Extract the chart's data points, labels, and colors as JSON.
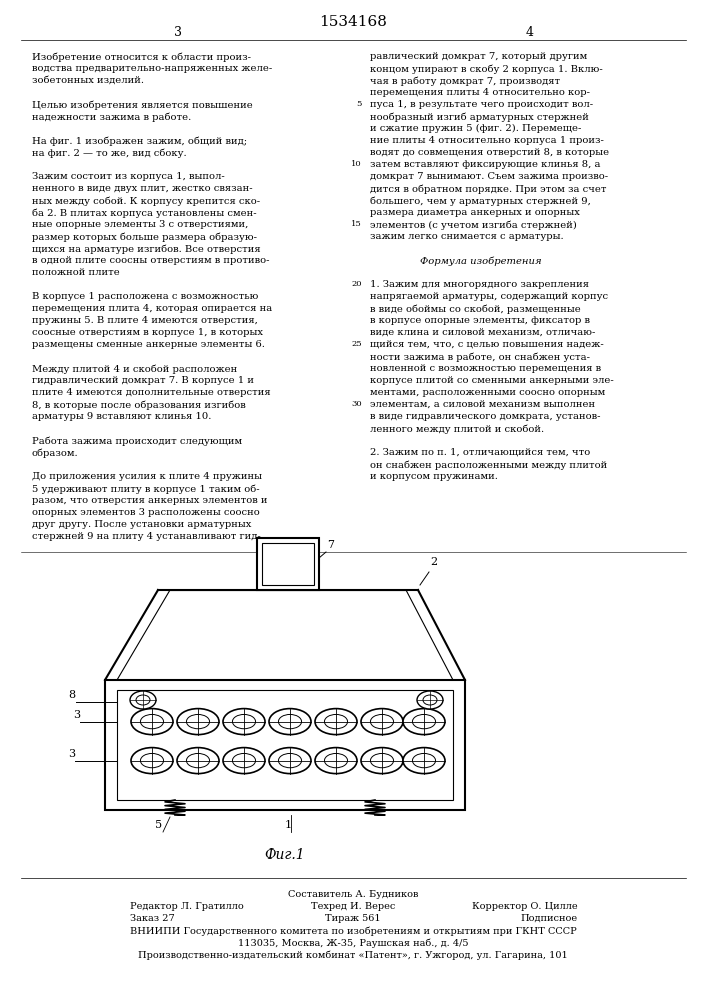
{
  "title": "1534168",
  "page_numbers": [
    "3",
    "4"
  ],
  "background_color": "#ffffff",
  "line_color": "#000000",
  "text_color": "#000000",
  "left_column_text": [
    "Изобретение относится к области произ-",
    "водства предварительно-напряженных желе-",
    "зобетонных изделий.",
    "",
    "Целью изобретения является повышение",
    "надежности зажима в работе.",
    "",
    "На фиг. 1 изображен зажим, общий вид;",
    "на фиг. 2 — то же, вид сбоку.",
    "",
    "Зажим состоит из корпуса 1, выпол-",
    "ненного в виде двух плит, жестко связан-",
    "ных между собой. К корпусу крепится ско-",
    "ба 2. В плитах корпуса установлены смен-",
    "ные опорные элементы 3 с отверстиями,",
    "размер которых больше размера образую-",
    "щихся на арматуре изгибов. Все отверстия",
    "в одной плите соосны отверстиям в противо-",
    "положной плите",
    "",
    "В корпусе 1 расположена с возможностью",
    "перемещения плита 4, которая опирается на",
    "пружины 5. В плите 4 имеются отверстия,",
    "соосные отверстиям в корпусе 1, в которых",
    "размещены сменные анкерные элементы 6.",
    "",
    "Между плитой 4 и скобой расположен",
    "гидравлический домкрат 7. В корпусе 1 и",
    "плите 4 имеются дополнительные отверстия",
    "8, в которые после образования изгибов",
    "арматуры 9 вставляют клинья 10.",
    "",
    "Работа зажима происходит следующим",
    "образом.",
    "",
    "До приложения усилия к плите 4 пружины",
    "5 удерживают плиту в корпусе 1 таким об-",
    "разом, что отверстия анкерных элементов и",
    "опорных элементов 3 расположены соосно",
    "друг другу. После установки арматурных",
    "стержней 9 на плиту 4 устанавливают гид-"
  ],
  "right_column_text": [
    "равлический домкрат 7, который другим",
    "концом упирают в скобу 2 корпуса 1. Вклю-",
    "чая в работу домкрат 7, производят",
    "перемещения плиты 4 относительно кор-",
    "пуса 1, в результате чего происходит вол-",
    "нообразный изгиб арматурных стержней",
    "и сжатие пружин 5 (фиг. 2). Перемеще-",
    "ние плиты 4 относительно корпуса 1 произ-",
    "водят до совмещения отверстий 8, в которые",
    "затем вставляют фиксирующие клинья 8, а",
    "домкрат 7 вынимают. Съем зажима произво-",
    "дится в обратном порядке. При этом за счет",
    "большего, чем у арматурных стержней 9,",
    "размера диаметра анкерных и опорных",
    "элементов (с учетом изгиба стержней)",
    "зажим легко снимается с арматуры.",
    "",
    "Формула изобретения",
    "",
    "1. Зажим для многорядного закрепления",
    "напрягаемой арматуры, содержащий корпус",
    "в виде обоймы со скобой, размещенные",
    "в корпусе опорные элементы, фиксатор в",
    "виде клина и силовой механизм, отличаю-",
    "щийся тем, что, с целью повышения надеж-",
    "ности зажима в работе, он снабжен уста-",
    "новленной с возможностью перемещения в",
    "корпусе плитой со сменными анкерными эле-",
    "ментами, расположенными соосно опорным",
    "элементам, а силовой механизм выполнен",
    "в виде гидравлического домкрата, установ-",
    "ленного между плитой и скобой.",
    "",
    "2. Зажим по п. 1, отличающийся тем, что",
    "он снабжен расположенными между плитой",
    "и корпусом пружинами."
  ],
  "footer_lines": [
    [
      "center",
      "Составитель А. Будников"
    ],
    [
      "left",
      "Редактор Л. Гратилло",
      "center",
      "Техред И. Верес",
      "right",
      "Корректор О. Цилле"
    ],
    [
      "left",
      "Заказ 27",
      "center",
      "Тираж 561",
      "right",
      "Подписное"
    ],
    [
      "center",
      "ВНИИПИ Государственного комитета по изобретениям и открытиям при ГКНТ СССР"
    ],
    [
      "center",
      "113035, Москва, Ж-35, Раушская наб., д. 4/5"
    ],
    [
      "center",
      "Производственно-издательский комбинат «Патент», г. Ужгород, ул. Гагарина, 101"
    ]
  ],
  "fig_label": "Фиг.1"
}
